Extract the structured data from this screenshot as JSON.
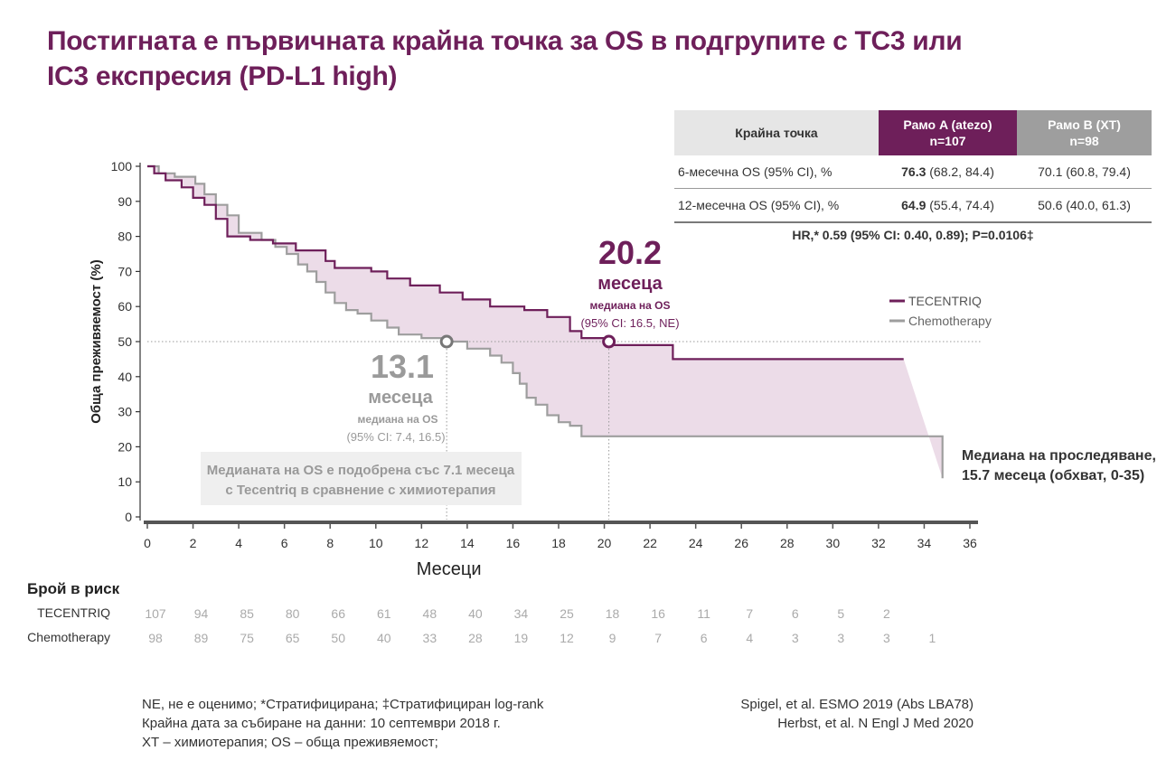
{
  "title": {
    "line1": "Постигната е първичната крайна точка за OS в подгрупите с TC3 или",
    "line2": "IC3 експресия (PD-L1 high)"
  },
  "colors": {
    "tecentriq": "#6e1f5a",
    "chemo": "#9e9e9e",
    "shade": "#ecdce8"
  },
  "table": {
    "header": {
      "endpoint": "Крайна точка",
      "armA": "Рамо A (atezo)",
      "armA_n": "n=107",
      "armB": "Рамо B (ХТ)",
      "armB_n": "n=98"
    },
    "rows": [
      {
        "label": "6-месечна OS (95% CI), %",
        "a_bold": "76.3",
        "a_rest": " (68.2, 84.4)",
        "b": "70.1 (60.8, 79.4)"
      },
      {
        "label": "12-месечна OS (95% CI), %",
        "a_bold": "64.9",
        "a_rest": " (55.4, 74.4)",
        "b": "50.6 (40.0, 61.3)"
      }
    ],
    "hr": "HR,* 0.59 (95% CI: 0.40, 0.89); P=0.0106‡"
  },
  "annotations": {
    "tec_value": "20.2",
    "tec_unit": "месеца",
    "tec_label": "медиана на OS",
    "tec_ci": "(95% CI: 16.5, NE)",
    "chemo_value": "13.1",
    "chemo_unit": "месеца",
    "chemo_label": "медиана на OS",
    "chemo_ci": "(95% CI: 7.4, 16.5)",
    "box_line1": "Медианата на OS е подобрена със 7.1 месеца",
    "box_line2": "с Tecentriq в сравнение с химиотерапия",
    "followup_line1": "Медиана на проследяване,",
    "followup_line2": "15.7 месеца (обхват, 0-35)"
  },
  "risk": {
    "title": "Брой в риск",
    "labels": [
      "TECENTRIQ",
      "Chemotherapy"
    ],
    "months": [
      0,
      2,
      4,
      6,
      8,
      10,
      12,
      14,
      16,
      18,
      20,
      22,
      24,
      26,
      28,
      30,
      32,
      34
    ],
    "tecentriq": [
      "107",
      "94",
      "85",
      "80",
      "66",
      "61",
      "48",
      "40",
      "34",
      "25",
      "18",
      "16",
      "11",
      "7",
      "6",
      "5",
      "2",
      ""
    ],
    "chemo": [
      "98",
      "89",
      "75",
      "65",
      "50",
      "40",
      "33",
      "28",
      "19",
      "12",
      "9",
      "7",
      "6",
      "4",
      "3",
      "3",
      "3",
      "1"
    ]
  },
  "footnotes": [
    "NE, не е оценимо; *Стратифицирана; ‡Стратифициран log-rank",
    "Крайна дата за събиране на данни: 10 септември 2018 г.",
    "ХТ – химиотерапия; OS – обща преживяемост;"
  ],
  "references": [
    "Spigel, et al. ESMO 2019 (Abs LBA78)",
    "Herbst, et al. N Engl J Med 2020"
  ],
  "chart_data": {
    "type": "line",
    "title": "",
    "xlabel": "Месеци",
    "ylabel": "Обща преживяемост (%)",
    "xlim": [
      0,
      36
    ],
    "ylim": [
      0,
      100
    ],
    "xticks": [
      0,
      2,
      4,
      6,
      8,
      10,
      12,
      14,
      16,
      18,
      20,
      22,
      24,
      26,
      28,
      30,
      32,
      34,
      36
    ],
    "yticks": [
      0,
      10,
      20,
      30,
      40,
      50,
      60,
      70,
      80,
      90,
      100
    ],
    "grid": false,
    "legend": "right",
    "reference_y": 50,
    "series": [
      {
        "name": "TECENTRIQ",
        "color": "#6e1f5a",
        "step": true,
        "x": [
          0,
          0.3,
          0.8,
          1.5,
          2.0,
          2.5,
          3.0,
          3.5,
          4.5,
          5.5,
          6.5,
          7.8,
          8.2,
          9.8,
          10.5,
          11.5,
          12.8,
          13.8,
          15.0,
          16.5,
          17.5,
          18.5,
          19.0,
          20.2,
          23.0,
          33.1
        ],
        "y": [
          100,
          98,
          96,
          94,
          91,
          89,
          85,
          80,
          79,
          78,
          76,
          73,
          71,
          70,
          68,
          66,
          64,
          62,
          60,
          59,
          57,
          53,
          51,
          49,
          45,
          45
        ]
      },
      {
        "name": "Chemotherapy",
        "color": "#9e9e9e",
        "step": true,
        "x": [
          0,
          0.5,
          1.2,
          2.1,
          2.5,
          3.0,
          3.5,
          4.0,
          5.0,
          5.6,
          6.1,
          6.6,
          7.0,
          7.4,
          7.8,
          8.2,
          8.7,
          9.2,
          9.8,
          10.5,
          11.0,
          12.0,
          13.1,
          14.0,
          15.0,
          15.5,
          16.0,
          16.3,
          16.6,
          17.0,
          17.5,
          18.0,
          18.5,
          19.0,
          33.8,
          34.8
        ],
        "y": [
          100,
          98,
          97,
          95,
          92,
          89,
          86,
          81,
          79,
          77,
          75,
          72,
          70,
          67,
          64,
          61,
          59,
          58,
          56,
          54,
          52,
          51,
          50,
          48,
          46,
          44,
          41,
          38,
          34,
          32,
          29,
          27,
          26,
          23,
          23,
          11
        ]
      }
    ]
  }
}
